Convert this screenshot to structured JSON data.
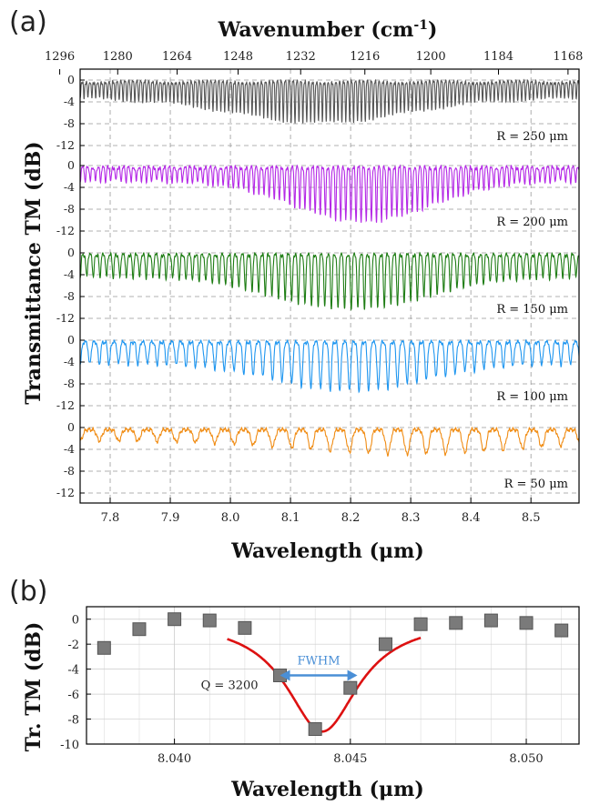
{
  "panel_a_label": "(a)",
  "panel_b_label": "(b)",
  "chart_data": [
    {
      "type": "line",
      "xlabel": "Wavelength (μm)",
      "x2label": "Wavenumber (cm",
      "x2label_sup": "-1",
      "x2label_close": ")",
      "ylabel": "Transmittance TM (dB)",
      "xlim": [
        7.75,
        8.58
      ],
      "x_ticks": [
        "7.8",
        "7.9",
        "8.0",
        "8.1",
        "8.2",
        "8.3",
        "8.4",
        "8.5"
      ],
      "x2_ticks": [
        "1296",
        "1280",
        "1264",
        "1248",
        "1232",
        "1216",
        "1200",
        "1184",
        "1168"
      ],
      "ylim": [
        -12,
        0
      ],
      "y_ticks": [
        "0",
        "-4",
        "-8",
        "-12"
      ],
      "grid": true,
      "series": [
        {
          "name": "R = 250 μm",
          "color": "#555555",
          "fsr_um": 0.0065,
          "depth_db": [
            3,
            7.5
          ],
          "dip_center_um": 8.15,
          "dip_width_um": 0.2
        },
        {
          "name": "R = 200 μm",
          "color": "#b428e6",
          "fsr_um": 0.0085,
          "depth_db": [
            2.5,
            10
          ],
          "dip_center_um": 8.22,
          "dip_width_um": 0.16
        },
        {
          "name": "R = 150 μm",
          "color": "#1e7d14",
          "fsr_um": 0.011,
          "depth_db": [
            4,
            10
          ],
          "dip_center_um": 8.2,
          "dip_width_um": 0.18
        },
        {
          "name": "R = 100 μm",
          "color": "#1e96f0",
          "fsr_um": 0.016,
          "depth_db": [
            4,
            9
          ],
          "dip_center_um": 8.2,
          "dip_width_um": 0.17
        },
        {
          "name": "R = 50 μm",
          "color": "#f08c14",
          "fsr_um": 0.032,
          "depth_db": [
            2,
            4.5
          ],
          "dip_center_um": 8.3,
          "dip_width_um": 0.25
        }
      ]
    },
    {
      "type": "scatter",
      "xlabel": "Wavelength (μm)",
      "ylabel": "Tr. TM (dB)",
      "xlim": [
        8.0375,
        8.0515
      ],
      "ylim": [
        -10,
        1
      ],
      "x_ticks": [
        "8.040",
        "8.045",
        "8.050"
      ],
      "y_ticks": [
        "0",
        "-2",
        "-4",
        "-6",
        "-8",
        "-10"
      ],
      "grid": true,
      "points": [
        {
          "x": 8.038,
          "y": -2.3
        },
        {
          "x": 8.039,
          "y": -0.8
        },
        {
          "x": 8.04,
          "y": 0.0
        },
        {
          "x": 8.041,
          "y": -0.1
        },
        {
          "x": 8.042,
          "y": -0.7
        },
        {
          "x": 8.043,
          "y": -4.5
        },
        {
          "x": 8.044,
          "y": -8.8
        },
        {
          "x": 8.045,
          "y": -5.5
        },
        {
          "x": 8.046,
          "y": -2.0
        },
        {
          "x": 8.047,
          "y": -0.4
        },
        {
          "x": 8.048,
          "y": -0.3
        },
        {
          "x": 8.049,
          "y": -0.1
        },
        {
          "x": 8.05,
          "y": -0.3
        },
        {
          "x": 8.051,
          "y": -0.9
        }
      ],
      "fit": {
        "center": 8.0442,
        "fwhm": 0.0025,
        "depth_db": 9.0,
        "color": "#dd1111"
      },
      "annotations": {
        "fwhm_label": "FWHM",
        "q_label": "Q = 3200",
        "fwhm_from": 8.043,
        "fwhm_to": 8.0452,
        "fwhm_y": -4.5
      }
    }
  ]
}
